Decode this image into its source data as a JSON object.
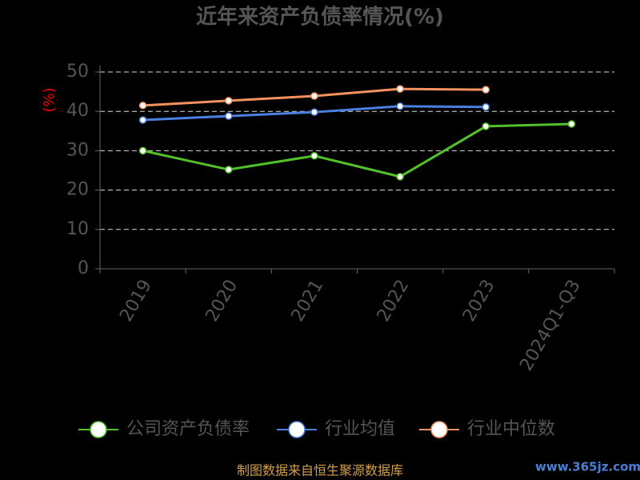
{
  "chart_data": {
    "type": "line",
    "title": "近年来资产负债率情况(%)",
    "y_label": "(%)",
    "categories": [
      "2019",
      "2020",
      "2021",
      "2022",
      "2023",
      "2024Q1-Q3"
    ],
    "series": [
      {
        "name": "公司资产负债率",
        "color": "#52c12a",
        "values": [
          30.0,
          25.2,
          28.7,
          23.4,
          36.2,
          36.8
        ]
      },
      {
        "name": "行业均值",
        "color": "#4a80e0",
        "values": [
          37.8,
          38.8,
          39.8,
          41.3,
          41.1,
          null
        ]
      },
      {
        "name": "行业中位数",
        "color": "#f5925e",
        "values": [
          41.5,
          42.7,
          43.9,
          45.7,
          45.5,
          null
        ]
      }
    ],
    "ylim": [
      0,
      50
    ],
    "yticks": [
      0,
      10,
      20,
      30,
      40,
      50
    ],
    "grid": true,
    "source": "制图数据来自恒生聚源数据库",
    "watermark": "www.365jz.com"
  }
}
